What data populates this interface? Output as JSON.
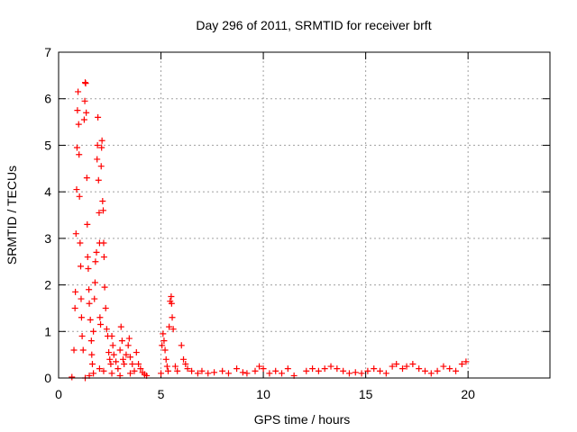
{
  "chart_data": {
    "type": "scatter",
    "title": "Day 296 of 2011, SRMTID for receiver brft",
    "xlabel": "GPS time / hours",
    "ylabel": "SRMTID / TECUs",
    "xlim": [
      0,
      24
    ],
    "ylim": [
      0,
      7
    ],
    "xticks": [
      0,
      5,
      10,
      15,
      20
    ],
    "yticks": [
      0,
      1,
      2,
      3,
      4,
      5,
      6,
      7
    ],
    "grid": true,
    "marker": "+",
    "series": [
      {
        "name": "SRMTID",
        "color": "#ff0000",
        "points": [
          [
            0.65,
            0.02
          ],
          [
            0.75,
            0.6
          ],
          [
            0.8,
            1.5
          ],
          [
            0.82,
            1.85
          ],
          [
            0.85,
            3.1
          ],
          [
            0.88,
            4.05
          ],
          [
            0.9,
            4.95
          ],
          [
            0.92,
            5.75
          ],
          [
            0.95,
            6.15
          ],
          [
            0.98,
            5.45
          ],
          [
            1.0,
            4.8
          ],
          [
            1.02,
            3.9
          ],
          [
            1.05,
            2.9
          ],
          [
            1.08,
            2.4
          ],
          [
            1.1,
            1.7
          ],
          [
            1.12,
            1.3
          ],
          [
            1.15,
            0.9
          ],
          [
            1.2,
            0.6
          ],
          [
            1.25,
            5.55
          ],
          [
            1.28,
            5.95
          ],
          [
            1.3,
            6.35
          ],
          [
            1.32,
            6.33
          ],
          [
            1.35,
            5.7
          ],
          [
            1.38,
            4.3
          ],
          [
            1.4,
            3.3
          ],
          [
            1.42,
            2.6
          ],
          [
            1.45,
            2.35
          ],
          [
            1.48,
            1.9
          ],
          [
            1.5,
            1.6
          ],
          [
            1.55,
            1.25
          ],
          [
            1.6,
            0.8
          ],
          [
            1.62,
            0.5
          ],
          [
            1.65,
            0.3
          ],
          [
            1.7,
            1.0
          ],
          [
            1.75,
            1.7
          ],
          [
            1.78,
            2.05
          ],
          [
            1.8,
            2.5
          ],
          [
            1.85,
            2.7
          ],
          [
            1.88,
            4.7
          ],
          [
            1.9,
            5.0
          ],
          [
            1.92,
            5.6
          ],
          [
            1.95,
            4.25
          ],
          [
            1.98,
            3.55
          ],
          [
            2.0,
            2.9
          ],
          [
            2.02,
            1.3
          ],
          [
            2.05,
            1.15
          ],
          [
            2.08,
            4.55
          ],
          [
            2.1,
            4.95
          ],
          [
            2.12,
            5.1
          ],
          [
            2.15,
            3.8
          ],
          [
            2.18,
            3.6
          ],
          [
            2.2,
            2.9
          ],
          [
            2.22,
            2.6
          ],
          [
            2.25,
            1.95
          ],
          [
            2.3,
            1.5
          ],
          [
            2.35,
            1.05
          ],
          [
            2.4,
            0.9
          ],
          [
            2.45,
            0.55
          ],
          [
            2.5,
            0.4
          ],
          [
            2.55,
            0.3
          ],
          [
            2.6,
            0.9
          ],
          [
            2.65,
            0.7
          ],
          [
            2.7,
            0.5
          ],
          [
            2.8,
            0.35
          ],
          [
            2.9,
            0.2
          ],
          [
            3.0,
            0.6
          ],
          [
            3.05,
            1.1
          ],
          [
            3.1,
            0.8
          ],
          [
            3.15,
            0.4
          ],
          [
            3.2,
            0.3
          ],
          [
            3.3,
            0.5
          ],
          [
            3.4,
            0.7
          ],
          [
            3.45,
            0.85
          ],
          [
            3.5,
            0.45
          ],
          [
            3.6,
            0.3
          ],
          [
            3.7,
            0.15
          ],
          [
            3.8,
            0.55
          ],
          [
            3.9,
            0.3
          ],
          [
            4.0,
            0.2
          ],
          [
            4.1,
            0.12
          ],
          [
            4.2,
            0.08
          ],
          [
            4.3,
            0.05
          ],
          [
            1.3,
            0.0
          ],
          [
            1.5,
            0.05
          ],
          [
            1.7,
            0.1
          ],
          [
            2.0,
            0.2
          ],
          [
            2.2,
            0.15
          ],
          [
            2.6,
            0.1
          ],
          [
            3.0,
            0.05
          ],
          [
            3.5,
            0.1
          ],
          [
            5.0,
            0.1
          ],
          [
            5.05,
            0.7
          ],
          [
            5.1,
            0.95
          ],
          [
            5.15,
            0.8
          ],
          [
            5.2,
            0.6
          ],
          [
            5.25,
            0.4
          ],
          [
            5.3,
            0.25
          ],
          [
            5.35,
            0.15
          ],
          [
            5.4,
            1.1
          ],
          [
            5.45,
            1.65
          ],
          [
            5.5,
            1.75
          ],
          [
            5.52,
            1.6
          ],
          [
            5.55,
            1.3
          ],
          [
            5.6,
            1.05
          ],
          [
            5.7,
            0.25
          ],
          [
            5.8,
            0.15
          ],
          [
            6.0,
            0.7
          ],
          [
            6.1,
            0.4
          ],
          [
            6.2,
            0.3
          ],
          [
            6.3,
            0.2
          ],
          [
            6.5,
            0.15
          ],
          [
            6.8,
            0.1
          ],
          [
            7.0,
            0.15
          ],
          [
            7.3,
            0.1
          ],
          [
            7.6,
            0.12
          ],
          [
            8.0,
            0.15
          ],
          [
            8.3,
            0.1
          ],
          [
            8.7,
            0.2
          ],
          [
            9.0,
            0.12
          ],
          [
            9.2,
            0.1
          ],
          [
            9.6,
            0.15
          ],
          [
            9.8,
            0.25
          ],
          [
            10.0,
            0.2
          ],
          [
            10.3,
            0.1
          ],
          [
            10.6,
            0.15
          ],
          [
            10.9,
            0.1
          ],
          [
            11.2,
            0.2
          ],
          [
            11.5,
            0.05
          ],
          [
            12.1,
            0.15
          ],
          [
            12.4,
            0.2
          ],
          [
            12.7,
            0.15
          ],
          [
            13.0,
            0.2
          ],
          [
            13.3,
            0.25
          ],
          [
            13.6,
            0.2
          ],
          [
            13.9,
            0.15
          ],
          [
            14.2,
            0.1
          ],
          [
            14.5,
            0.12
          ],
          [
            14.8,
            0.1
          ],
          [
            15.1,
            0.15
          ],
          [
            15.4,
            0.2
          ],
          [
            15.7,
            0.15
          ],
          [
            16.0,
            0.1
          ],
          [
            16.3,
            0.25
          ],
          [
            16.5,
            0.3
          ],
          [
            16.8,
            0.2
          ],
          [
            17.0,
            0.25
          ],
          [
            17.3,
            0.3
          ],
          [
            17.6,
            0.2
          ],
          [
            17.9,
            0.15
          ],
          [
            18.2,
            0.1
          ],
          [
            18.5,
            0.15
          ],
          [
            18.8,
            0.25
          ],
          [
            19.1,
            0.2
          ],
          [
            19.4,
            0.15
          ],
          [
            19.7,
            0.3
          ],
          [
            19.9,
            0.35
          ]
        ]
      }
    ]
  }
}
